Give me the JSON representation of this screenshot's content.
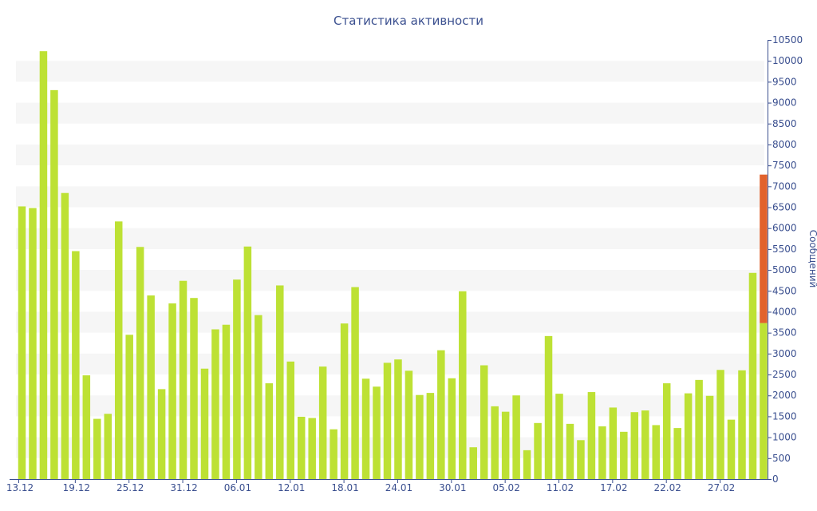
{
  "chart_data": {
    "type": "bar",
    "title": "Статистика активности",
    "ylabel": "Сообщений",
    "ylim": [
      0,
      10500
    ],
    "y_ticks": [
      0,
      500,
      1000,
      1500,
      2000,
      2500,
      3000,
      3500,
      4000,
      4500,
      5000,
      5500,
      6000,
      6500,
      7000,
      7500,
      8000,
      8500,
      9000,
      9500,
      10000,
      10500
    ],
    "x_tick_labels": [
      "13.12",
      "19.12",
      "25.12",
      "31.12",
      "06.01",
      "12.01",
      "18.01",
      "24.01",
      "30.01",
      "05.02",
      "11.02",
      "17.02",
      "22.02",
      "27.02"
    ],
    "x_tick_index": [
      0,
      5,
      10,
      15,
      20,
      25,
      30,
      35,
      40,
      45,
      50,
      55,
      60,
      65
    ],
    "values": [
      6520,
      6480,
      10230,
      9300,
      6840,
      5450,
      2480,
      1440,
      1560,
      6160,
      3450,
      5550,
      4390,
      2150,
      4200,
      4740,
      4330,
      2640,
      3580,
      3690,
      4770,
      5560,
      3920,
      2290,
      4630,
      2810,
      1490,
      1460,
      2690,
      1190,
      3720,
      4590,
      2400,
      2210,
      2780,
      2860,
      2590,
      2010,
      2060,
      3080,
      2410,
      4490,
      760,
      2720,
      1740,
      1610,
      2000,
      690,
      1340,
      3420,
      2040,
      1320,
      930,
      2080,
      1260,
      1710,
      1130,
      1600,
      1640,
      1290,
      2290,
      1220,
      2050,
      2370,
      1990,
      2610,
      1420,
      2600,
      4930,
      7280
    ],
    "last_bar_highlight_from": 3730,
    "colors": {
      "bar": "#bde134",
      "highlight": "#e2622c",
      "band": "#f6f6f6",
      "text": "#3a4f8f"
    },
    "grid": "alternating horizontal bands",
    "y_axis_side": "right"
  }
}
